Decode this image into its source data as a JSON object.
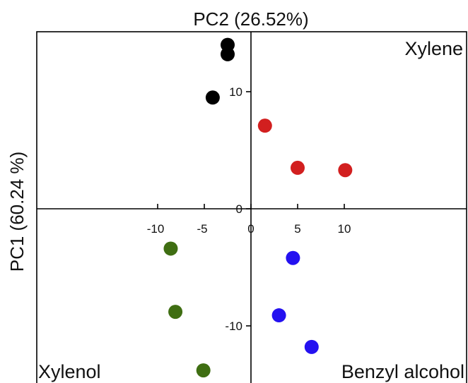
{
  "chart_data": {
    "type": "scatter",
    "title": "PC2 (26.52%)",
    "xlabel": "",
    "ylabel": "PC1 (60.24 %)",
    "xlim": [
      -13.5,
      11.5
    ],
    "ylim": [
      -15,
      14.8
    ],
    "xticks": [
      -10,
      -5,
      0,
      5,
      10
    ],
    "yticks": [
      10,
      0,
      -10
    ],
    "grid": false,
    "quadrant_labels": {
      "top_right": "Xylene",
      "bottom_left": "Xylenol",
      "bottom_right": "Benzyl alcohol"
    },
    "series": [
      {
        "color": "#000000",
        "points": [
          [
            -2.5,
            14.0
          ],
          [
            -2.5,
            13.2
          ],
          [
            -4.1,
            9.5
          ]
        ]
      },
      {
        "color": "#d21f1f",
        "points": [
          [
            1.5,
            7.1
          ],
          [
            5.0,
            3.5
          ],
          [
            10.1,
            3.3
          ]
        ]
      },
      {
        "color": "#3f6e12",
        "points": [
          [
            -8.6,
            -3.4
          ],
          [
            -8.1,
            -8.8
          ],
          [
            -5.1,
            -13.8
          ]
        ]
      },
      {
        "color": "#2411f0",
        "points": [
          [
            4.5,
            -4.2
          ],
          [
            3.0,
            -9.1
          ],
          [
            6.5,
            -11.8
          ]
        ]
      }
    ]
  }
}
